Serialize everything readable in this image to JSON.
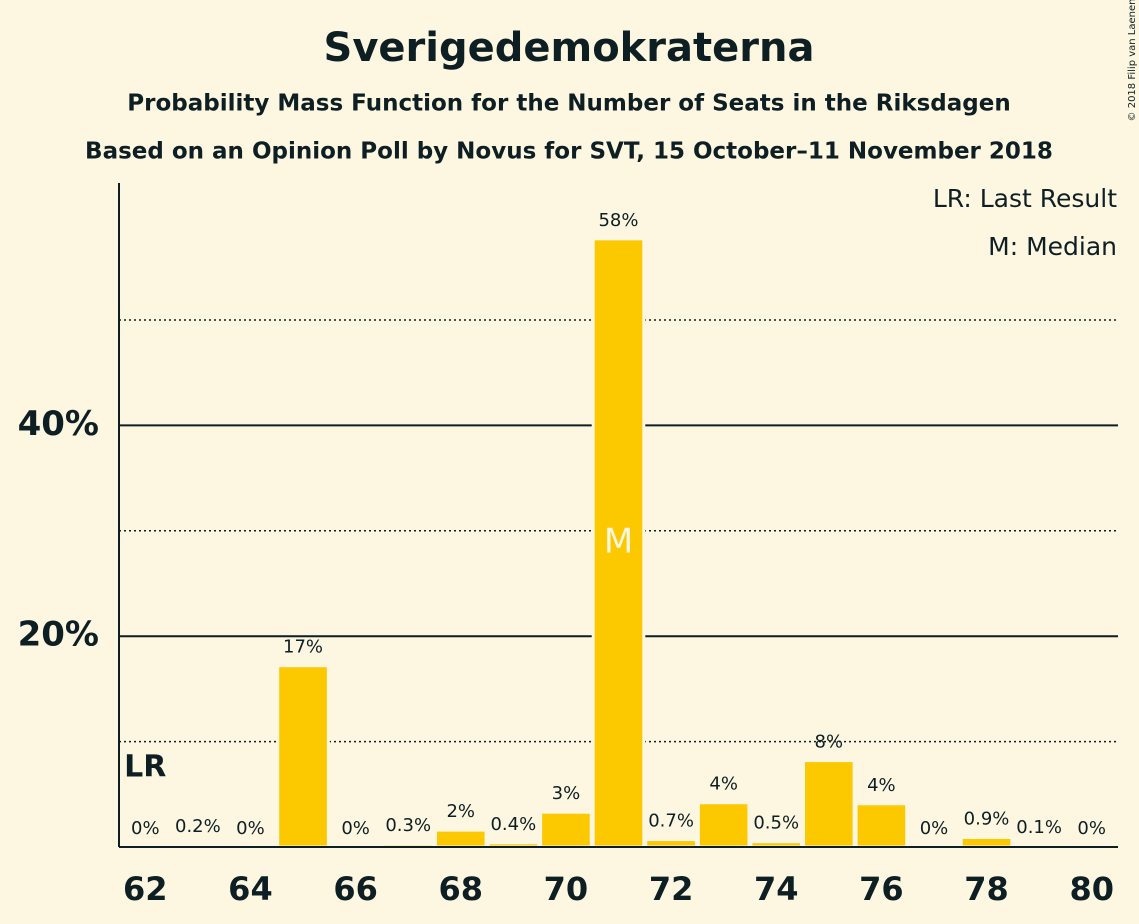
{
  "chart_data": {
    "type": "bar",
    "title": "Sverigedemokraterna",
    "subtitle": "Probability Mass Function for the Number of Seats in the Riksdagen",
    "subtitle2": "Based on an Opinion Poll by Novus for SVT, 15 October–11 November 2018",
    "x": [
      62,
      63,
      64,
      65,
      66,
      67,
      68,
      69,
      70,
      71,
      72,
      73,
      74,
      75,
      76,
      77,
      78,
      79,
      80
    ],
    "values": [
      0,
      0.2,
      0,
      17.2,
      0,
      0.3,
      1.6,
      0.4,
      3.3,
      57.7,
      0.7,
      4.2,
      0.5,
      8.2,
      4.1,
      0,
      0.9,
      0.1,
      0
    ],
    "value_labels": [
      "0%",
      "0.2%",
      "0%",
      "17%",
      "0%",
      "0.3%",
      "2%",
      "0.4%",
      "3%",
      "58%",
      "0.7%",
      "4%",
      "0.5%",
      "8%",
      "4%",
      "0%",
      "0.9%",
      "0.1%",
      "0%"
    ],
    "color": "#fcc800",
    "background": "#fdf6e1",
    "xlim": [
      61.5,
      80.5
    ],
    "xticks": [
      62,
      64,
      66,
      68,
      70,
      72,
      74,
      76,
      78,
      80
    ],
    "ylim": [
      0,
      63
    ],
    "yticks": [
      {
        "value": 20,
        "label": "20%"
      },
      {
        "value": 40,
        "label": "40%"
      }
    ],
    "minor_yticks": [
      10,
      30,
      50
    ],
    "grid": true,
    "last_result": {
      "x": 62,
      "label": "LR"
    },
    "median": {
      "x": 71,
      "label": "M"
    },
    "legend": [
      "LR: Last Result",
      "M: Median"
    ],
    "copyright": "© 2018 Filip van Laenen"
  }
}
